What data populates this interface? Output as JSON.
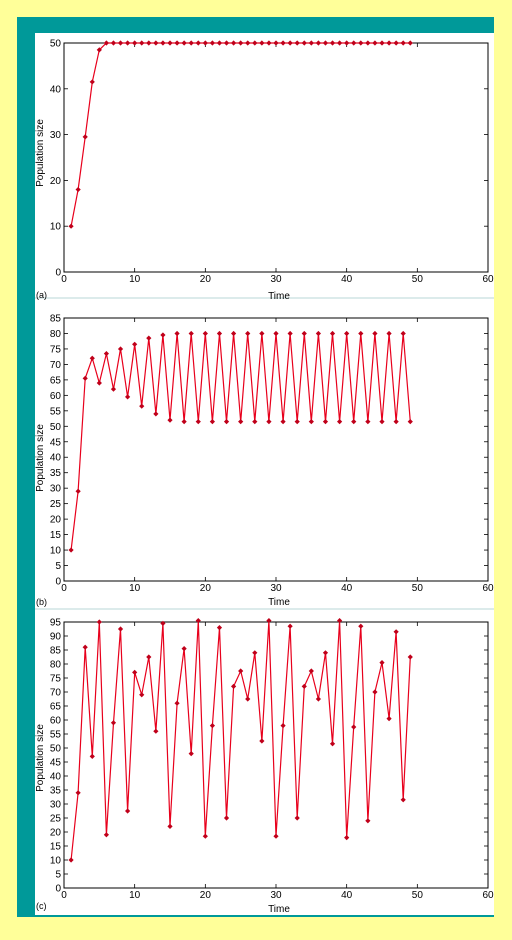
{
  "colors": {
    "background": "#ffff99",
    "frame": "#009999",
    "series": "#e8001c",
    "marker": "#c0001a"
  },
  "chart_data": [
    {
      "type": "line",
      "panel_label": "(a)",
      "xlabel": "Time",
      "ylabel": "Population size",
      "xlim": [
        0,
        60
      ],
      "ylim": [
        0,
        50
      ],
      "xticks": [
        0,
        10,
        20,
        30,
        40,
        50,
        60
      ],
      "yticks": [
        0,
        10,
        20,
        30,
        40,
        50
      ],
      "series": [
        {
          "x": [
            1,
            2,
            3,
            4,
            5,
            6,
            7,
            8,
            9,
            10,
            11,
            12,
            13,
            14,
            15,
            16,
            17,
            18,
            19,
            20,
            21,
            22,
            23,
            24,
            25,
            26,
            27,
            28,
            29,
            30,
            31,
            32,
            33,
            34,
            35,
            36,
            37,
            38,
            39,
            40,
            41,
            42,
            43,
            44,
            45,
            46,
            47,
            48,
            49
          ],
          "values": [
            10,
            18,
            29.5,
            41.5,
            48.5,
            50,
            50,
            50,
            50,
            50,
            50,
            50,
            50,
            50,
            50,
            50,
            50,
            50,
            50,
            50,
            50,
            50,
            50,
            50,
            50,
            50,
            50,
            50,
            50,
            50,
            50,
            50,
            50,
            50,
            50,
            50,
            50,
            50,
            50,
            50,
            50,
            50,
            50,
            50,
            50,
            50,
            50,
            50,
            50
          ]
        }
      ]
    },
    {
      "type": "line",
      "panel_label": "(b)",
      "xlabel": "Time",
      "ylabel": "Population size",
      "xlim": [
        0,
        60
      ],
      "ylim": [
        0,
        85
      ],
      "xticks": [
        0,
        10,
        20,
        30,
        40,
        50,
        60
      ],
      "yticks": [
        0,
        5,
        10,
        15,
        20,
        25,
        30,
        35,
        40,
        45,
        50,
        55,
        60,
        65,
        70,
        75,
        80,
        85
      ],
      "series": [
        {
          "x": [
            1,
            2,
            3,
            4,
            5,
            6,
            7,
            8,
            9,
            10,
            11,
            12,
            13,
            14,
            15,
            16,
            17,
            18,
            19,
            20,
            21,
            22,
            23,
            24,
            25,
            26,
            27,
            28,
            29,
            30,
            31,
            32,
            33,
            34,
            35,
            36,
            37,
            38,
            39,
            40,
            41,
            42,
            43,
            44,
            45,
            46,
            47,
            48,
            49
          ],
          "values": [
            10,
            29,
            65.5,
            72,
            64,
            73.5,
            62,
            75,
            59.5,
            76.5,
            56.5,
            78.5,
            54,
            79.5,
            52,
            80,
            51.5,
            80,
            51.5,
            80,
            51.5,
            80,
            51.5,
            80,
            51.5,
            80,
            51.5,
            80,
            51.5,
            80,
            51.5,
            80,
            51.5,
            80,
            51.5,
            80,
            51.5,
            80,
            51.5,
            80,
            51.5,
            80,
            51.5,
            80,
            51.5,
            80,
            51.5,
            80,
            51.5
          ]
        }
      ]
    },
    {
      "type": "line",
      "panel_label": "(c)",
      "xlabel": "Time",
      "ylabel": "Population size",
      "xlim": [
        0,
        60
      ],
      "ylim": [
        0,
        95
      ],
      "xticks": [
        0,
        10,
        20,
        30,
        40,
        50,
        60
      ],
      "yticks": [
        0,
        5,
        10,
        15,
        20,
        25,
        30,
        35,
        40,
        45,
        50,
        55,
        60,
        65,
        70,
        75,
        80,
        85,
        90,
        95
      ],
      "series": [
        {
          "x": [
            1,
            2,
            3,
            4,
            5,
            6,
            7,
            8,
            9,
            10,
            11,
            12,
            13,
            14,
            15,
            16,
            17,
            18,
            19,
            20,
            21,
            22,
            23,
            24,
            25,
            26,
            27,
            28,
            29,
            30,
            31,
            32,
            33,
            34,
            35,
            36,
            37,
            38,
            39,
            40,
            41,
            42,
            43,
            44,
            45,
            46,
            47,
            48,
            49
          ],
          "values": [
            10,
            34,
            86,
            47,
            95,
            19,
            59,
            92.5,
            27.5,
            77,
            69,
            82.5,
            56,
            94.5,
            22,
            66,
            85.5,
            48,
            95.5,
            18.5,
            58,
            93,
            25,
            72,
            77.5,
            67.5,
            84,
            52.5,
            95.5,
            18.5,
            58,
            93.5,
            25,
            72,
            77.5,
            67.5,
            84,
            51.5,
            95.5,
            18,
            57.5,
            93.5,
            24,
            70,
            80.5,
            60.5,
            91.5,
            31.5,
            82.5
          ]
        }
      ]
    }
  ]
}
